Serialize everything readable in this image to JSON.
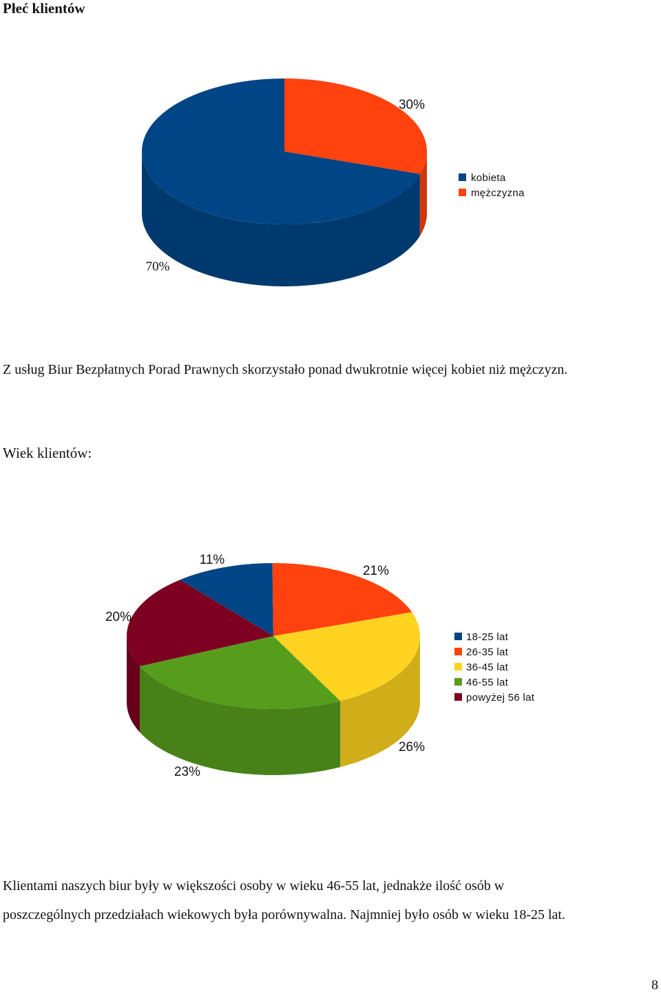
{
  "section1": {
    "title": "Płeć klientów",
    "paragraph": "Z usług Biur Bezpłatnych Porad Prawnych skorzystało ponad dwukrotnie więcej kobiet niż mężczyzn."
  },
  "section2": {
    "title": "Wiek klientów:",
    "paragraph_line1": "Klientami naszych biur były w większości osoby w wieku 46-55 lat, jednakże ilość osób w",
    "paragraph_line2": "poszczególnych przedziałach wiekowych była porównywalna. Najmniej było osób w wieku 18-25 lat."
  },
  "page_number": "8",
  "chart_data": [
    {
      "type": "pie",
      "title": "",
      "categories": [
        "kobieta",
        "mężczyzna"
      ],
      "values": [
        70,
        30
      ],
      "labels": [
        "70%",
        "30%"
      ],
      "colors": [
        "#004586",
        "#ff420e"
      ],
      "legend_position": "right",
      "three_d": true
    },
    {
      "type": "pie",
      "title": "",
      "categories": [
        "18-25 lat",
        "26-35 lat",
        "36-45 lat",
        "46-55 lat",
        "powyżej 56 lat"
      ],
      "values": [
        11,
        20,
        23,
        26,
        21
      ],
      "labels": [
        "11%",
        "20%",
        "23%",
        "26%",
        "21%"
      ],
      "colors": [
        "#004586",
        "#ff420e",
        "#ffd320",
        "#579d1c",
        "#7e0021"
      ],
      "legend_position": "right",
      "three_d": true
    }
  ]
}
